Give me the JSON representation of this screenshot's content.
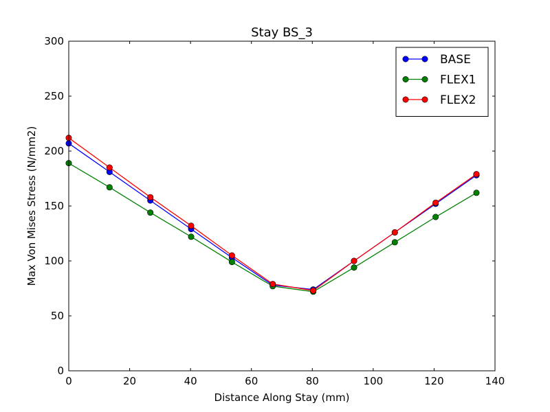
{
  "chart_data": {
    "type": "line",
    "title": "Stay BS_3",
    "xlabel": "Distance Along Stay (mm)",
    "ylabel": "Max Von Mises Stress (N/mm2)",
    "xlim": [
      0,
      140
    ],
    "ylim": [
      0,
      300
    ],
    "xticks": [
      0,
      20,
      40,
      60,
      80,
      100,
      120,
      140
    ],
    "yticks": [
      0,
      50,
      100,
      150,
      200,
      250,
      300
    ],
    "xtick_labels": [
      "0",
      "20",
      "40",
      "60",
      "80",
      "100",
      "120",
      "140"
    ],
    "ytick_labels": [
      "0",
      "50",
      "100",
      "150",
      "200",
      "250",
      "300"
    ],
    "grid": false,
    "legend_position": "top-right",
    "x": [
      0,
      13.4,
      26.8,
      40.2,
      53.6,
      67.0,
      80.3,
      93.7,
      107.1,
      120.5,
      133.9
    ],
    "series": [
      {
        "name": "BASE",
        "color": "#0000ff",
        "values": [
          207,
          181,
          155,
          129,
          103,
          78,
          74,
          100,
          126,
          152,
          178
        ]
      },
      {
        "name": "FLEX1",
        "color": "#008000",
        "values": [
          189,
          167,
          144,
          122,
          99,
          77,
          72,
          94,
          117,
          140,
          162
        ]
      },
      {
        "name": "FLEX2",
        "color": "#ff0000",
        "values": [
          212,
          185,
          158,
          132,
          105,
          79,
          73,
          100,
          126,
          153,
          179
        ]
      }
    ]
  }
}
